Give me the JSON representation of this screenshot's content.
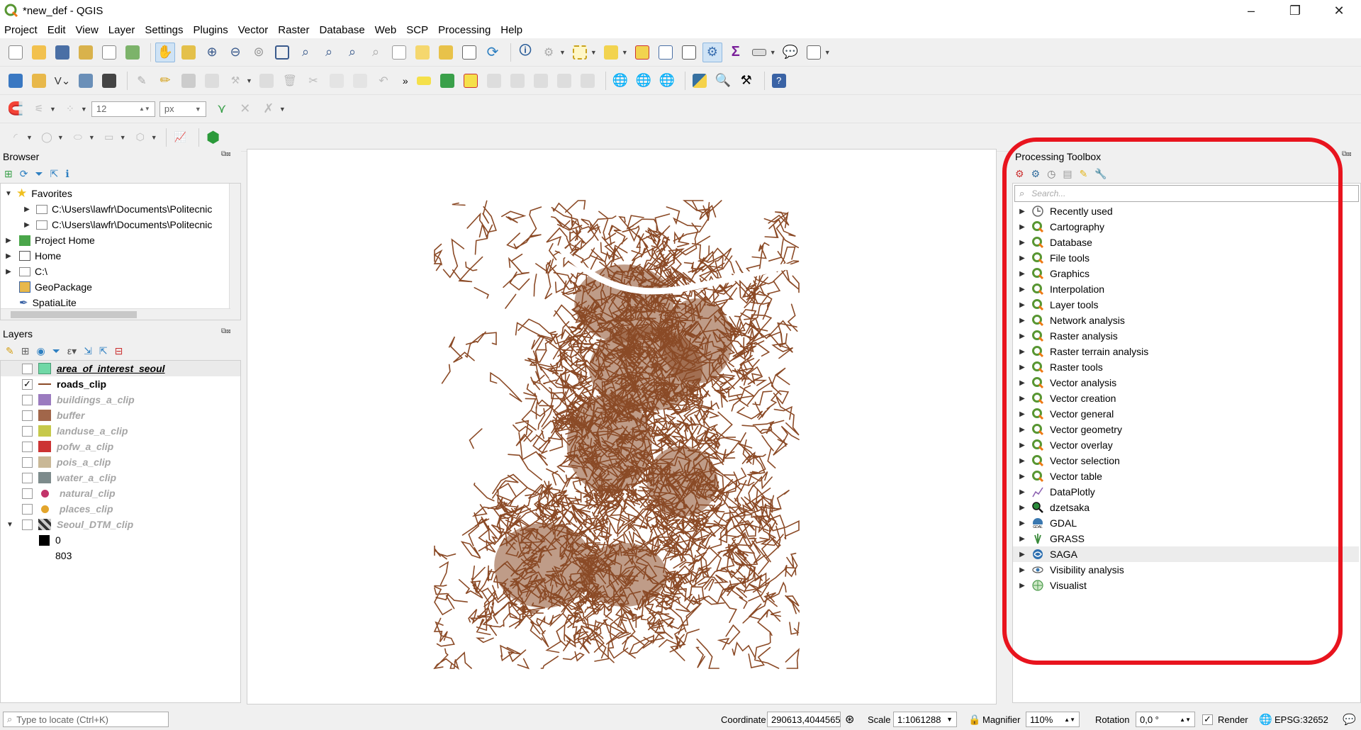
{
  "window": {
    "title": "*new_def - QGIS",
    "min": "–",
    "max": "❐",
    "close": "✕"
  },
  "menu": [
    "Project",
    "Edit",
    "View",
    "Layer",
    "Settings",
    "Plugins",
    "Vector",
    "Raster",
    "Database",
    "Web",
    "SCP",
    "Processing",
    "Help"
  ],
  "snapping": {
    "tolerance": "12",
    "unit": "px"
  },
  "browser": {
    "title": "Browser",
    "items": [
      {
        "label": "Favorites",
        "expanded": true
      },
      {
        "label": "C:\\Users\\lawfr\\Documents\\Politecnic"
      },
      {
        "label": "C:\\Users\\lawfr\\Documents\\Politecnic"
      },
      {
        "label": "Project Home"
      },
      {
        "label": "Home"
      },
      {
        "label": "C:\\"
      },
      {
        "label": "GeoPackage"
      },
      {
        "label": "SpatiaLite"
      }
    ]
  },
  "layers": {
    "title": "Layers",
    "items": [
      {
        "label": "area_of_interest_seoul",
        "checked": false,
        "swatch": "#70d8a6",
        "style": "active"
      },
      {
        "label": "roads_clip",
        "checked": true,
        "swatch": "line",
        "style": "bold"
      },
      {
        "label": "buildings_a_clip",
        "checked": false,
        "swatch": "#9b7bbf",
        "style": "dim"
      },
      {
        "label": "buffer",
        "checked": false,
        "swatch": "#a1664a",
        "style": "dim"
      },
      {
        "label": "landuse_a_clip",
        "checked": false,
        "swatch": "#c6c94b",
        "style": "dim"
      },
      {
        "label": "pofw_a_clip",
        "checked": false,
        "swatch": "#cc3333",
        "style": "dim"
      },
      {
        "label": "pois_a_clip",
        "checked": false,
        "swatch": "#c9b896",
        "style": "dim"
      },
      {
        "label": "water_a_clip",
        "checked": false,
        "swatch": "#7d8b8c",
        "style": "dim"
      },
      {
        "label": "natural_clip",
        "checked": false,
        "swatch": "dot-pink",
        "style": "dim"
      },
      {
        "label": "places_clip",
        "checked": false,
        "swatch": "dot-orange",
        "style": "dim"
      },
      {
        "label": "Seoul_DTM_clip",
        "checked": false,
        "swatch": "raster",
        "style": "dim"
      }
    ],
    "legend_min": "0",
    "legend_max": "803"
  },
  "toolbox": {
    "title": "Processing Toolbox",
    "search_placeholder": "Search...",
    "items": [
      "Recently used",
      "Cartography",
      "Database",
      "File tools",
      "Graphics",
      "Interpolation",
      "Layer tools",
      "Network analysis",
      "Raster analysis",
      "Raster terrain analysis",
      "Raster tools",
      "Vector analysis",
      "Vector creation",
      "Vector general",
      "Vector geometry",
      "Vector overlay",
      "Vector selection",
      "Vector table",
      "DataPlotly",
      "dzetsaka",
      "GDAL",
      "GRASS",
      "SAGA",
      "Visibility analysis",
      "Visualist"
    ]
  },
  "status": {
    "locate_placeholder": "Type to locate (Ctrl+K)",
    "coordinate_label": "Coordinate",
    "coordinate": "290613,4044565",
    "scale_label": "Scale",
    "scale": "1:1061288",
    "magnifier_label": "Magnifier",
    "magnifier": "110%",
    "rotation_label": "Rotation",
    "rotation": "0,0 °",
    "render_label": "Render",
    "crs": "EPSG:32652"
  },
  "colors": {
    "roads": "#8b4a26",
    "highlight": "#e8141e",
    "qgis_green": "#589632"
  }
}
